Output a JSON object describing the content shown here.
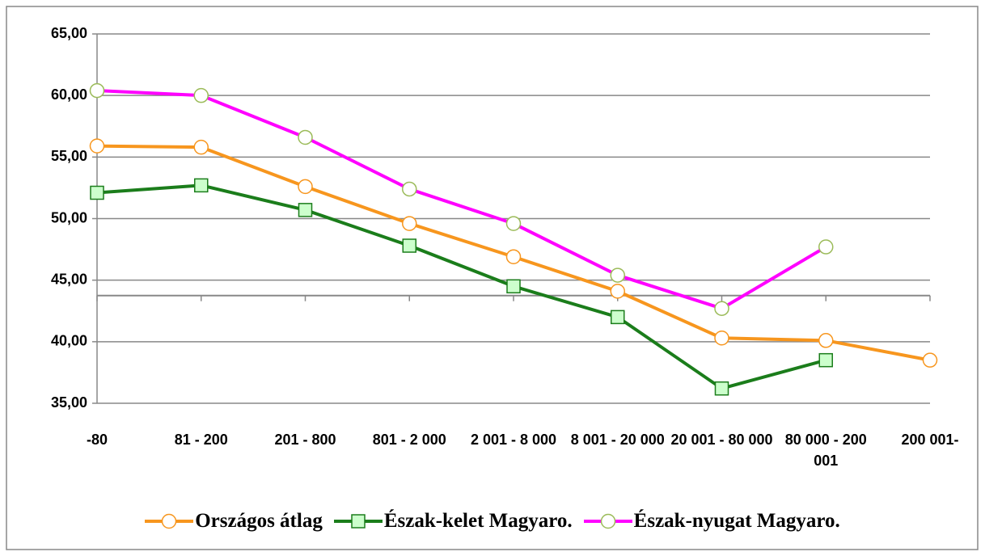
{
  "chart_data": {
    "type": "line",
    "categories": [
      "-80",
      "81 - 200",
      "201 - 800",
      "801 - 2 000",
      "2 001 - 8 000",
      "8 001 - 20 000",
      "20 001 - 80 000",
      "80 000 - 200 001",
      "200 001-"
    ],
    "series": [
      {
        "name": "Országos átlag",
        "color": "#f7961e",
        "marker": "circle",
        "marker_fill": "#ffffff",
        "marker_stroke": "#f7961e",
        "values": [
          55.9,
          55.8,
          52.6,
          49.6,
          46.9,
          44.1,
          40.3,
          40.1,
          38.5
        ]
      },
      {
        "name": "Észak-kelet Magyaro.",
        "color": "#1b7d1b",
        "marker": "square",
        "marker_fill": "#ccffcc",
        "marker_stroke": "#1b7d1b",
        "values": [
          52.1,
          52.7,
          50.7,
          47.8,
          44.5,
          42.0,
          36.2,
          38.5,
          null
        ]
      },
      {
        "name": "Észak-nyugat Magyaro.",
        "color": "#ff00ff",
        "marker": "circle",
        "marker_fill": "#ffffff",
        "marker_stroke": "#9bbb59",
        "values": [
          60.4,
          60.0,
          56.6,
          52.4,
          49.6,
          45.4,
          42.7,
          47.7,
          null
        ]
      }
    ],
    "ylim": [
      35,
      65
    ],
    "yticks": [
      {
        "value": 35,
        "label": "35,00"
      },
      {
        "value": 40,
        "label": "40,00"
      },
      {
        "value": 45,
        "label": "45,00"
      },
      {
        "value": 50,
        "label": "50,00"
      },
      {
        "value": 55,
        "label": "55,00"
      },
      {
        "value": 60,
        "label": "60,00"
      },
      {
        "value": 65,
        "label": "65,00"
      }
    ],
    "x_axis_crossing": 43.75,
    "grid": true,
    "legend": "bottom"
  }
}
